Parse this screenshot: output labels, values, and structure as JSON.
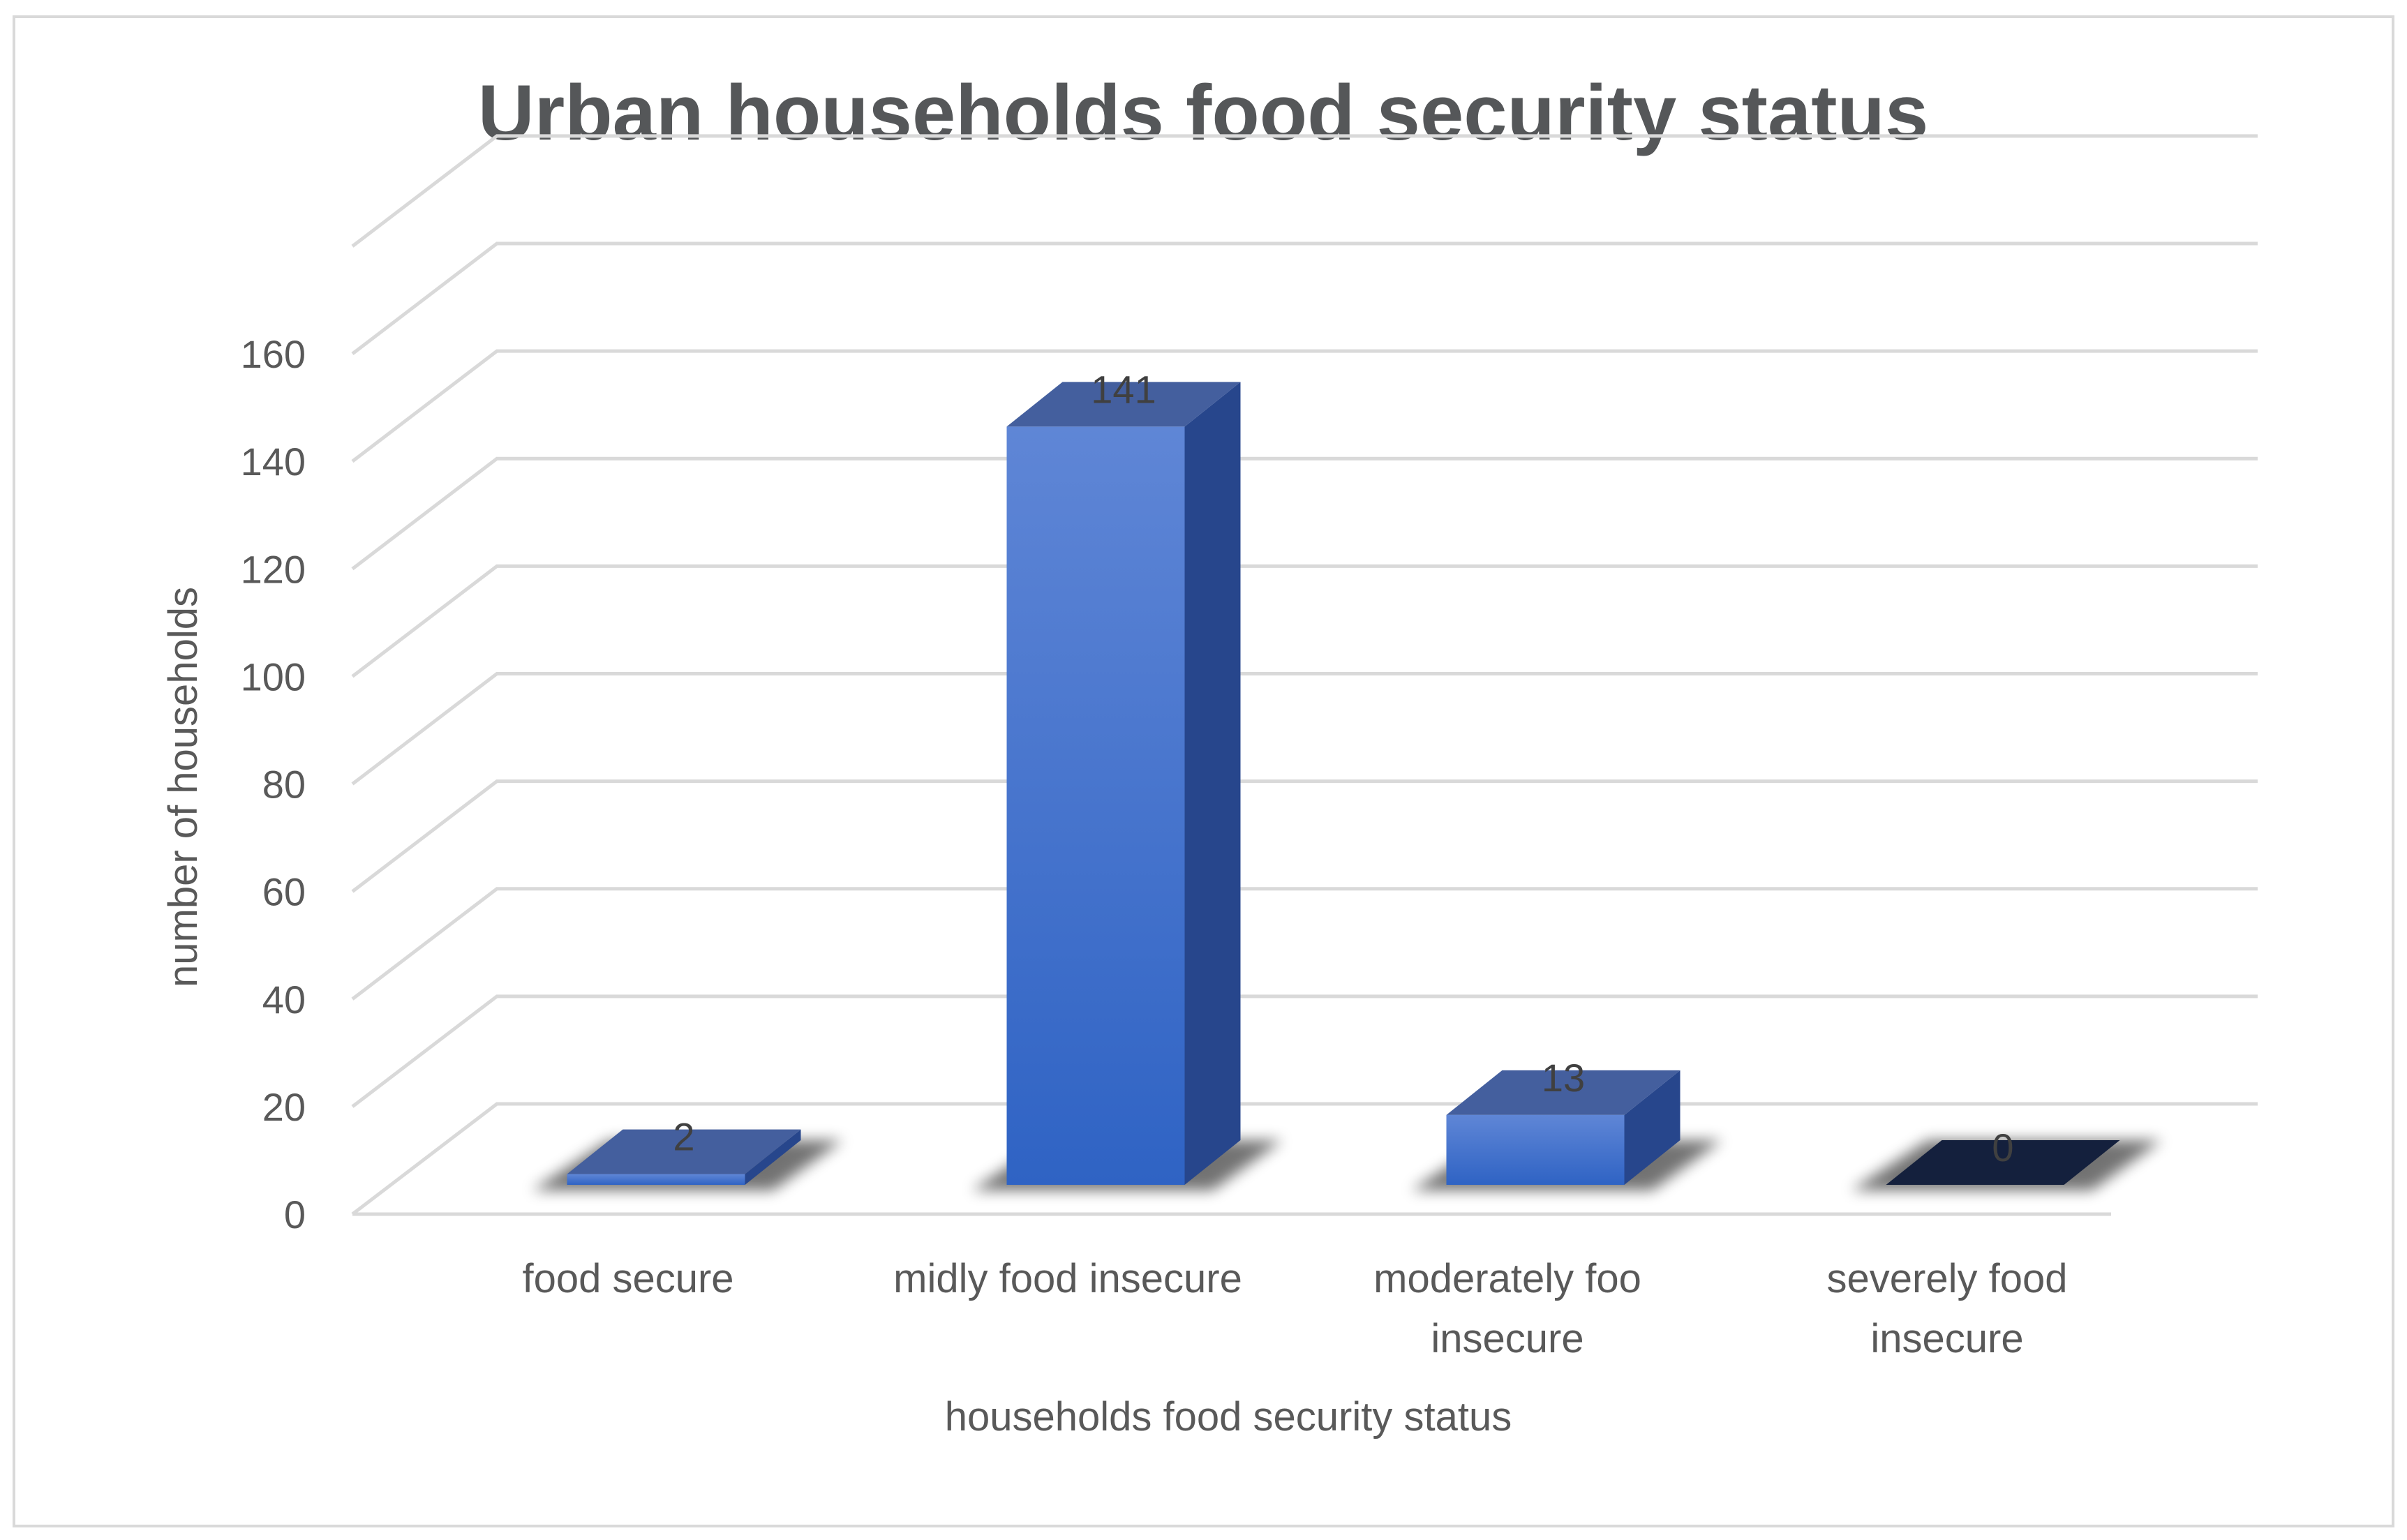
{
  "chart_data": {
    "type": "bar",
    "title": "Urban households food security status",
    "xlabel": "households food security status",
    "ylabel": "number of households",
    "ylim": [
      0,
      160
    ],
    "yticks": [
      0,
      20,
      40,
      60,
      80,
      100,
      120,
      140,
      160
    ],
    "categories": [
      [
        "food secure"
      ],
      [
        "midly food insecure"
      ],
      [
        "moderately foo",
        "insecure"
      ],
      [
        "severely food",
        "insecure"
      ]
    ],
    "values": [
      2,
      141,
      13,
      0
    ],
    "data_labels": [
      "2",
      "141",
      "13",
      "0"
    ],
    "grid": true,
    "legend": "none",
    "style": "3d-column",
    "colors": {
      "bar_front_top": "#5f86d6",
      "bar_front_bottom": "#2f63c4",
      "bar_side": "#27468c",
      "bar_top": "#445f9e",
      "zero_bar": "#14203d",
      "gridline": "#d9d9d9",
      "border": "#d9d9d9"
    }
  }
}
